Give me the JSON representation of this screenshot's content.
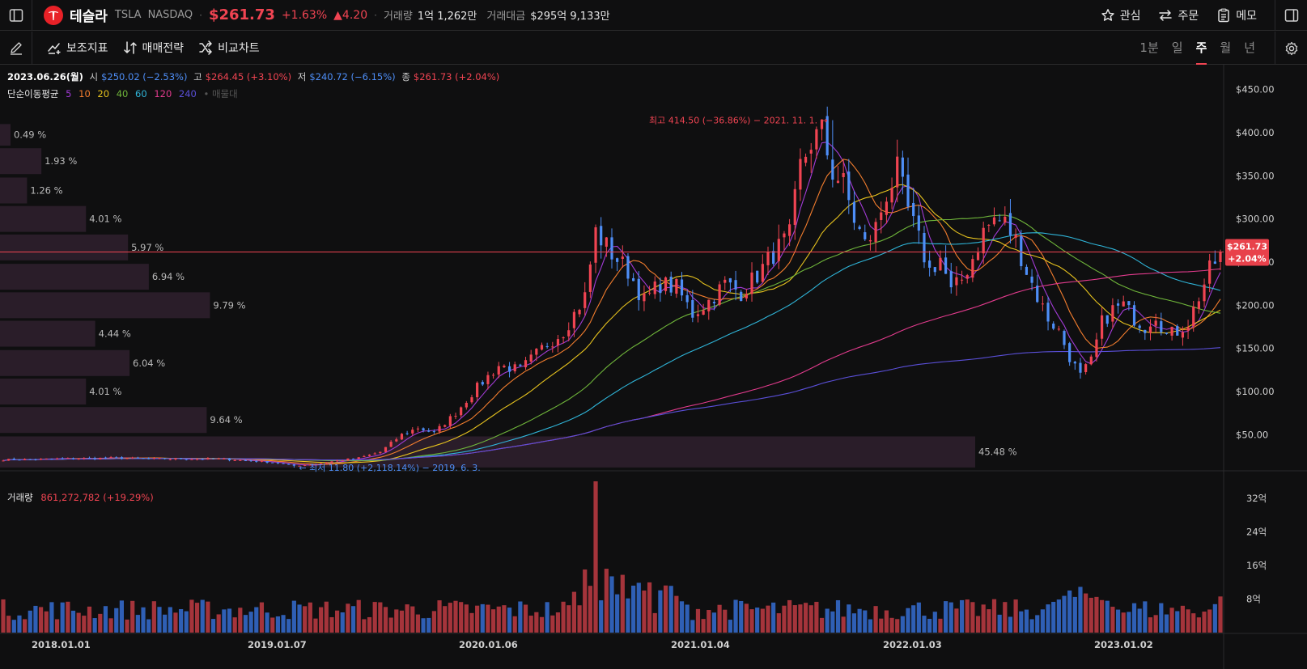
{
  "header": {
    "name": "테슬라",
    "ticker": "TSLA",
    "exchange": "NASDAQ",
    "price": "$261.73",
    "change_pct": "+1.63%",
    "change_abs": "▲4.20",
    "volume_label": "거래량",
    "volume_value": "1억 1,262만",
    "amount_label": "거래대금",
    "amount_value": "$295억 9,133만",
    "watch_label": "관심",
    "order_label": "주문",
    "memo_label": "메모"
  },
  "toolbar": {
    "indicator_label": "보조지표",
    "strategy_label": "매매전략",
    "compare_label": "비교차트",
    "periods": [
      "1분",
      "일",
      "주",
      "월",
      "년"
    ],
    "active_period": "주"
  },
  "ohlc": {
    "date": "2023.06.26(월)",
    "open_label": "시",
    "open": "$250.02 (−2.53%)",
    "high_label": "고",
    "high": "$264.45 (+3.10%)",
    "low_label": "저",
    "low": "$240.72 (−6.15%)",
    "close_label": "종",
    "close": "$261.73 (+2.04%)"
  },
  "ma_legend": {
    "label": "단순이동평균",
    "items": [
      {
        "period": "5",
        "color": "#a23bd6"
      },
      {
        "period": "10",
        "color": "#f27d2e"
      },
      {
        "period": "20",
        "color": "#e6c21e"
      },
      {
        "period": "40",
        "color": "#6fb53a"
      },
      {
        "period": "60",
        "color": "#2fb5d9"
      },
      {
        "period": "120",
        "color": "#e23b8d"
      },
      {
        "period": "240",
        "color": "#5a4fd8"
      }
    ],
    "extra": "• 매물대"
  },
  "volume_legend": {
    "label": "거래량",
    "value": "861,272,782 (+19.29%)"
  },
  "annotations": {
    "high": "최고 414.50 (−36.86%) − 2021. 11. 1. →",
    "low": "← 최저 11.80 (+2,118.14%) − 2019. 6. 3."
  },
  "current_tag": {
    "price": "$261.73",
    "pct": "+2.04%"
  },
  "colors": {
    "up": "#f04452",
    "down": "#4e8ef7",
    "up_volume": "#a5343b",
    "down_volume": "#2f5fb5",
    "profile": "#2d1f2c"
  },
  "chart_data": {
    "type": "candlestick",
    "interval": "weekly",
    "y_ticks": [
      50,
      100,
      150,
      200,
      250,
      300,
      350,
      400,
      450
    ],
    "y_tick_labels": [
      "$50.00",
      "$100.00",
      "$150.00",
      "$200.00",
      "$250.00",
      "$300.00",
      "$350.00",
      "$400.00",
      "$450.00"
    ],
    "ylim": [
      10,
      460
    ],
    "x_tick_labels": [
      "2018.01.01",
      "2019.01.07",
      "2020.01.06",
      "2021.01.04",
      "2022.01.03",
      "2023.01.02"
    ],
    "volume_ticks": [
      "8억",
      "16억",
      "24억",
      "32억"
    ],
    "volume_ylim": [
      0,
      36
    ],
    "price_path": [
      [
        0,
        21
      ],
      [
        10,
        22
      ],
      [
        20,
        23
      ],
      [
        30,
        22
      ],
      [
        40,
        22
      ],
      [
        45,
        20
      ],
      [
        50,
        18
      ],
      [
        54,
        14
      ],
      [
        58,
        16
      ],
      [
        62,
        20
      ],
      [
        66,
        23
      ],
      [
        70,
        30
      ],
      [
        74,
        50
      ],
      [
        77,
        58
      ],
      [
        80,
        52
      ],
      [
        84,
        75
      ],
      [
        88,
        105
      ],
      [
        92,
        130
      ],
      [
        96,
        125
      ],
      [
        100,
        150
      ],
      [
        104,
        170
      ],
      [
        108,
        210
      ],
      [
        110,
        285
      ],
      [
        113,
        260
      ],
      [
        116,
        240
      ],
      [
        119,
        205
      ],
      [
        122,
        225
      ],
      [
        125,
        220
      ],
      [
        128,
        190
      ],
      [
        131,
        205
      ],
      [
        134,
        225
      ],
      [
        137,
        215
      ],
      [
        140,
        235
      ],
      [
        143,
        260
      ],
      [
        146,
        280
      ],
      [
        148,
        360
      ],
      [
        150,
        390
      ],
      [
        152,
        400
      ],
      [
        154,
        355
      ],
      [
        156,
        340
      ],
      [
        158,
        300
      ],
      [
        160,
        270
      ],
      [
        162,
        290
      ],
      [
        164,
        330
      ],
      [
        166,
        355
      ],
      [
        168,
        310
      ],
      [
        170,
        275
      ],
      [
        172,
        240
      ],
      [
        174,
        255
      ],
      [
        176,
        215
      ],
      [
        178,
        230
      ],
      [
        180,
        255
      ],
      [
        182,
        285
      ],
      [
        184,
        300
      ],
      [
        186,
        295
      ],
      [
        188,
        275
      ],
      [
        190,
        240
      ],
      [
        192,
        210
      ],
      [
        194,
        185
      ],
      [
        196,
        170
      ],
      [
        198,
        140
      ],
      [
        200,
        118
      ],
      [
        202,
        135
      ],
      [
        204,
        180
      ],
      [
        206,
        195
      ],
      [
        208,
        200
      ],
      [
        210,
        185
      ],
      [
        212,
        175
      ],
      [
        214,
        190
      ],
      [
        216,
        165
      ],
      [
        218,
        170
      ],
      [
        220,
        180
      ],
      [
        222,
        210
      ],
      [
        224,
        240
      ],
      [
        225,
        250
      ],
      [
        226,
        261.73
      ]
    ],
    "price_high": 414.5,
    "price_low": 11.8,
    "last_close": 261.73,
    "moving_averages": [
      {
        "period": 5,
        "color": "#a23bd6"
      },
      {
        "period": 10,
        "color": "#f27d2e"
      },
      {
        "period": 20,
        "color": "#e6c21e"
      },
      {
        "period": 40,
        "color": "#6fb53a"
      },
      {
        "period": 60,
        "color": "#2fb5d9"
      },
      {
        "period": 120,
        "color": "#e23b8d"
      },
      {
        "period": 240,
        "color": "#5a4fd8"
      }
    ],
    "volume_profile": [
      {
        "price_from": 385,
        "price_to": 410,
        "pct": 0.49,
        "label": "0.49 %"
      },
      {
        "price_from": 352,
        "price_to": 382,
        "pct": 1.93,
        "label": "1.93 %"
      },
      {
        "price_from": 318,
        "price_to": 348,
        "pct": 1.26,
        "label": "1.26 %"
      },
      {
        "price_from": 285,
        "price_to": 315,
        "pct": 4.01,
        "label": "4.01 %"
      },
      {
        "price_from": 252,
        "price_to": 282,
        "pct": 5.97,
        "label": "5.97 %"
      },
      {
        "price_from": 218,
        "price_to": 248,
        "pct": 6.94,
        "label": "6.94 %"
      },
      {
        "price_from": 185,
        "price_to": 215,
        "pct": 9.79,
        "label": "9.79 %"
      },
      {
        "price_from": 152,
        "price_to": 182,
        "pct": 4.44,
        "label": "4.44 %"
      },
      {
        "price_from": 118,
        "price_to": 148,
        "pct": 6.04,
        "label": "6.04 %"
      },
      {
        "price_from": 85,
        "price_to": 115,
        "pct": 4.01,
        "label": "4.01 %"
      },
      {
        "price_from": 52,
        "price_to": 82,
        "pct": 9.64,
        "label": "9.64 %"
      },
      {
        "price_from": 12,
        "price_to": 48,
        "pct": 45.48,
        "label": "45.48 %"
      }
    ]
  }
}
